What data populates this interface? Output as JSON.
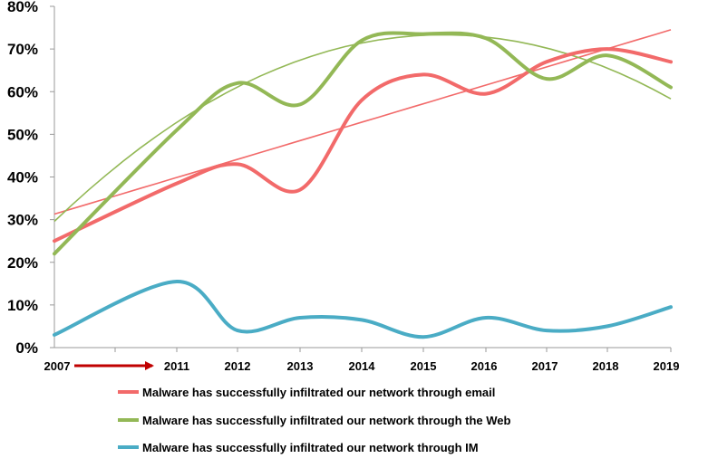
{
  "chart_data": {
    "type": "line",
    "x": [
      "2007",
      "2011",
      "2012",
      "2013",
      "2014",
      "2015",
      "2016",
      "2017",
      "2018",
      "2019"
    ],
    "yticks": [
      "0%",
      "10%",
      "20%",
      "30%",
      "40%",
      "50%",
      "60%",
      "70%",
      "80%"
    ],
    "ylim": [
      0,
      80
    ],
    "grid": false,
    "legend_position": "bottom",
    "series": [
      {
        "name": "Malware has successfully infiltrated our network through email",
        "color": "#F26A6A",
        "values": [
          25,
          38.5,
          43,
          37,
          58,
          64,
          59.5,
          67,
          70,
          67
        ],
        "trendline": true
      },
      {
        "name": "Malware has successfully infiltrated our network through the Web",
        "color": "#93B856",
        "values": [
          22,
          51,
          62,
          57,
          72,
          73.5,
          72.5,
          63,
          68.5,
          61
        ],
        "trendline": true
      },
      {
        "name": "Malware has successfully infiltrated our network through IM",
        "color": "#4AACC5",
        "values": [
          3,
          15.5,
          4,
          7,
          6.5,
          2.5,
          7,
          4,
          5,
          9.5
        ]
      }
    ],
    "annotations": [
      "red-arrow-2007-to-2011"
    ]
  }
}
